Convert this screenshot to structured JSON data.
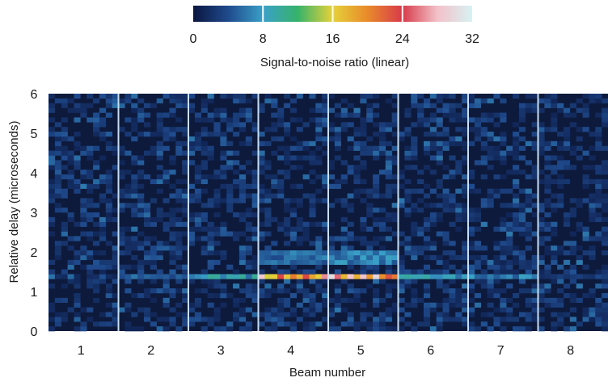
{
  "chart_data": {
    "type": "heatmap",
    "title": "",
    "xlabel": "Beam number",
    "ylabel": "Relative delay (microseconds)",
    "x_categories": [
      "1",
      "2",
      "3",
      "4",
      "5",
      "6",
      "7",
      "8"
    ],
    "ylim": [
      0,
      6
    ],
    "y_ticks": [
      "0",
      "1",
      "2",
      "3",
      "4",
      "5",
      "6"
    ],
    "colorbar": {
      "label": "Signal-to-noise ratio (linear)",
      "range": [
        0,
        32
      ],
      "ticks": [
        "0",
        "8",
        "16",
        "24",
        "32"
      ],
      "colors": [
        "#0b1640",
        "#1f4a8c",
        "#3aa0c8",
        "#36b36a",
        "#e6d23a",
        "#e88a2a",
        "#d83a4a",
        "#f2c2c8",
        "#d8f2f4"
      ]
    },
    "background_color": "#0d1a3c",
    "signal_bands": [
      {
        "name": "",
        "delay_range": [
          1.3,
          1.45
        ],
        "peak_snr_by_beam": [
          2,
          6,
          10,
          28,
          30,
          10,
          8,
          3
        ]
      },
      {
        "name": "",
        "delay_range": [
          1.7,
          2.05
        ],
        "peak_snr_by_beam": [
          1,
          1,
          1,
          7,
          8,
          1,
          1,
          1
        ]
      }
    ],
    "grid": false
  }
}
